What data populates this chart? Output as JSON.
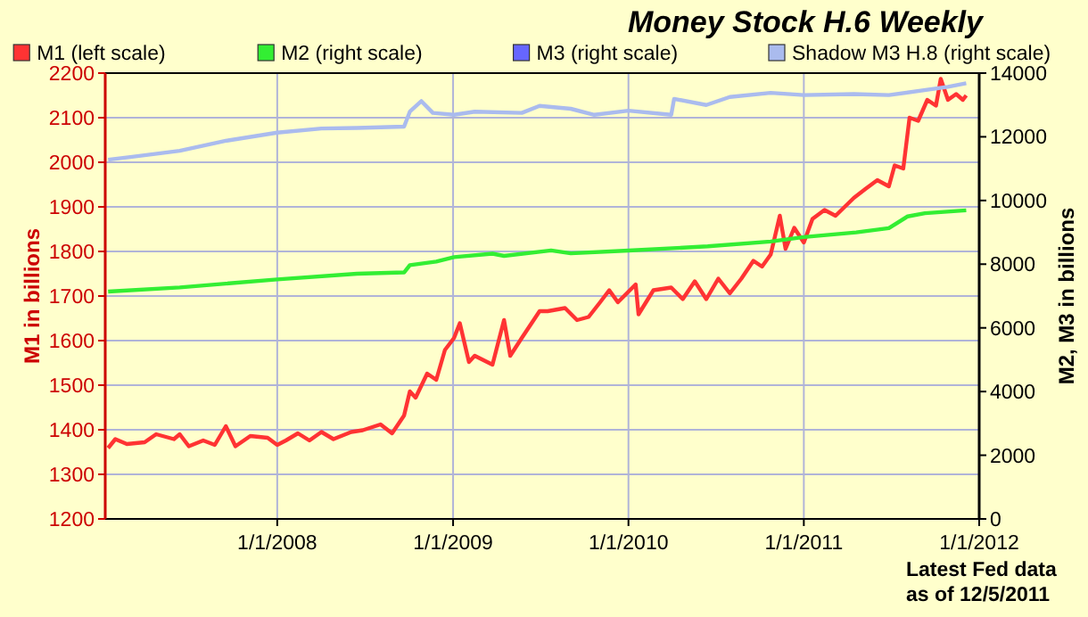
{
  "chart_data": {
    "type": "line",
    "title": "Money Stock H.6 Weekly",
    "ylabel": "M1 in billions",
    "y2label": "M2, M3 in billions",
    "annotations": [
      "Latest Fed data\nas of 12/5/2011"
    ],
    "xlim": [
      "2007-01-08",
      "2012-01-01"
    ],
    "xticks": [
      {
        "value": "2008-01-01",
        "label": "1/1/2008"
      },
      {
        "value": "2009-01-01",
        "label": "1/1/2009"
      },
      {
        "value": "2010-01-01",
        "label": "1/1/2010"
      },
      {
        "value": "2011-01-01",
        "label": "1/1/2011"
      },
      {
        "value": "2012-01-01",
        "label": "1/1/2012"
      }
    ],
    "ylim": [
      1200,
      2200
    ],
    "yticks": [
      1200,
      1300,
      1400,
      1500,
      1600,
      1700,
      1800,
      1900,
      2000,
      2100,
      2200
    ],
    "y2lim": [
      0,
      14000
    ],
    "y2ticks": [
      0,
      2000,
      4000,
      6000,
      8000,
      10000,
      12000,
      14000
    ],
    "grid": true,
    "legend": "top",
    "marker": "none",
    "line_style": "solid",
    "series": [
      {
        "name": "M1 (left scale)",
        "color": "#ff3333",
        "x": [
          "2007-01-14",
          "2007-01-29",
          "2007-02-22",
          "2007-03-31",
          "2007-04-24",
          "2007-05-31",
          "2007-06-12",
          "2007-07-01",
          "2007-07-31",
          "2007-08-24",
          "2007-09-16",
          "2007-10-06",
          "2007-11-06",
          "2007-12-12",
          "2008-01-01",
          "2008-01-19",
          "2008-02-13",
          "2008-03-08",
          "2008-04-02",
          "2008-04-27",
          "2008-06-03",
          "2008-06-27",
          "2008-08-03",
          "2008-08-27",
          "2008-09-21",
          "2008-10-03",
          "2008-10-15",
          "2008-11-08",
          "2008-11-27",
          "2008-12-15",
          "2009-01-03",
          "2009-01-15",
          "2009-02-03",
          "2009-02-15",
          "2009-03-24",
          "2009-04-17",
          "2009-04-30",
          "2009-05-24",
          "2009-06-30",
          "2009-07-17",
          "2009-08-22",
          "2009-09-16",
          "2009-10-10",
          "2009-11-03",
          "2009-11-22",
          "2009-12-10",
          "2010-01-16",
          "2010-01-22",
          "2010-02-22",
          "2010-03-31",
          "2010-04-24",
          "2010-05-19",
          "2010-06-12",
          "2010-07-07",
          "2010-07-31",
          "2010-08-24",
          "2010-09-18",
          "2010-10-06",
          "2010-10-24",
          "2010-11-12",
          "2010-11-24",
          "2010-12-12",
          "2011-01-01",
          "2011-01-19",
          "2011-02-13",
          "2011-03-08",
          "2011-04-15",
          "2011-05-09",
          "2011-06-03",
          "2011-06-27",
          "2011-07-09",
          "2011-07-27",
          "2011-08-09",
          "2011-08-27",
          "2011-09-15",
          "2011-10-03",
          "2011-10-13",
          "2011-10-28",
          "2011-11-14",
          "2011-11-28",
          "2011-12-05"
        ],
        "values": [
          1359,
          1379,
          1368,
          1372,
          1390,
          1379,
          1390,
          1363,
          1376,
          1366,
          1408,
          1363,
          1386,
          1382,
          1366,
          1376,
          1392,
          1376,
          1395,
          1379,
          1395,
          1399,
          1412,
          1392,
          1432,
          1486,
          1472,
          1526,
          1512,
          1579,
          1606,
          1639,
          1552,
          1566,
          1546,
          1646,
          1566,
          1606,
          1666,
          1666,
          1673,
          1646,
          1653,
          1686,
          1713,
          1686,
          1726,
          1659,
          1713,
          1719,
          1693,
          1733,
          1693,
          1739,
          1706,
          1739,
          1779,
          1766,
          1793,
          1880,
          1806,
          1853,
          1820,
          1873,
          1893,
          1880,
          1920,
          1940,
          1960,
          1946,
          1993,
          1986,
          2100,
          2093,
          2140,
          2127,
          2187,
          2140,
          2153,
          2140,
          2150
        ]
      },
      {
        "name": "M2 (right scale)",
        "color": "#33ee33",
        "axis": "y2",
        "x": [
          "2007-01-14",
          "2007-06-12",
          "2008-01-01",
          "2008-06-15",
          "2008-09-21",
          "2008-10-03",
          "2008-11-27",
          "2009-01-03",
          "2009-03-24",
          "2009-04-17",
          "2009-07-24",
          "2009-09-03",
          "2010-01-01",
          "2010-06-15",
          "2010-10-24",
          "2011-01-01",
          "2011-04-20",
          "2011-06-27",
          "2011-08-05",
          "2011-09-10",
          "2011-12-05"
        ],
        "values": [
          7140,
          7270,
          7520,
          7700,
          7740,
          7970,
          8080,
          8220,
          8330,
          8260,
          8430,
          8340,
          8430,
          8560,
          8710,
          8850,
          9000,
          9130,
          9500,
          9600,
          9690
        ]
      },
      {
        "name": "M3 (right scale)",
        "color": "#6666ff",
        "axis": "y2"
      },
      {
        "name": "Shadow M3 H.8 (right scale)",
        "color": "#aabbee",
        "axis": "y2",
        "x": [
          "2007-01-14",
          "2007-03-05",
          "2007-06-12",
          "2007-09-18",
          "2008-01-01",
          "2008-04-02",
          "2008-06-15",
          "2008-09-21",
          "2008-10-03",
          "2008-10-27",
          "2008-11-20",
          "2009-01-03",
          "2009-02-15",
          "2009-05-24",
          "2009-06-30",
          "2009-09-03",
          "2009-10-22",
          "2010-01-01",
          "2010-03-31",
          "2010-04-06",
          "2010-06-12",
          "2010-07-31",
          "2010-10-24",
          "2011-01-01",
          "2011-04-15",
          "2011-06-27",
          "2011-10-28",
          "2011-12-05"
        ],
        "values": [
          11280,
          11370,
          11560,
          11880,
          12130,
          12260,
          12280,
          12320,
          12790,
          13120,
          12750,
          12690,
          12790,
          12750,
          12970,
          12880,
          12690,
          12820,
          12690,
          13190,
          13000,
          13250,
          13380,
          13310,
          13340,
          13310,
          13570,
          13680
        ]
      }
    ]
  }
}
